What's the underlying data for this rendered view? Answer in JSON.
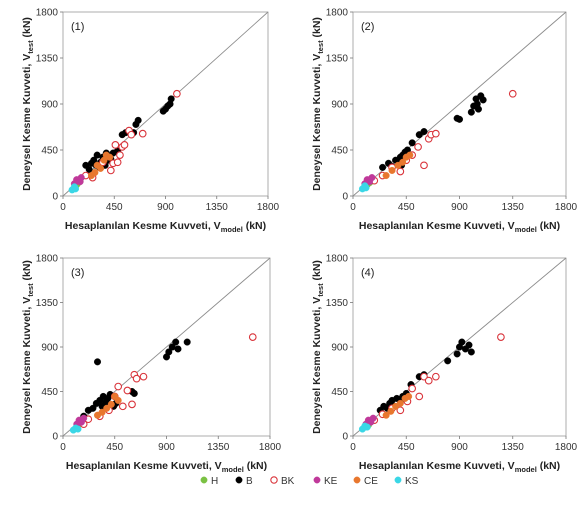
{
  "chart_data": [
    {
      "type": "scatter",
      "panel_label": "(1)",
      "xlabel": "Hesaplanılan Kesme Kuvveti, V",
      "xlabel_sub": "model",
      "xlabel_unit": " (kN)",
      "ylabel": "Deneysel Kesme Kuvveti, V",
      "ylabel_sub": "test",
      "ylabel_unit": " (kN)",
      "xlim": [
        0,
        1800
      ],
      "ylim": [
        0,
        1800
      ],
      "xticks": [
        "0",
        "450",
        "900",
        "1350",
        "1800"
      ],
      "yticks": [
        "0",
        "450",
        "900",
        "1350",
        "1800"
      ],
      "reference_line": "y = x",
      "series": [
        {
          "name": "H",
          "points": [
            [
              120,
              110
            ],
            [
              135,
              130
            ],
            [
              150,
              145
            ]
          ]
        },
        {
          "name": "B",
          "points": [
            [
              200,
              300
            ],
            [
              230,
              260
            ],
            [
              250,
              320
            ],
            [
              270,
              350
            ],
            [
              290,
              300
            ],
            [
              300,
              400
            ],
            [
              320,
              280
            ],
            [
              330,
              330
            ],
            [
              350,
              380
            ],
            [
              370,
              300
            ],
            [
              380,
              420
            ],
            [
              400,
              350
            ],
            [
              420,
              360
            ],
            [
              440,
              420
            ],
            [
              480,
              440
            ],
            [
              520,
              600
            ],
            [
              550,
              620
            ],
            [
              620,
              620
            ],
            [
              640,
              700
            ],
            [
              660,
              740
            ],
            [
              880,
              830
            ],
            [
              900,
              850
            ],
            [
              920,
              880
            ],
            [
              940,
              900
            ],
            [
              950,
              950
            ]
          ]
        },
        {
          "name": "BK",
          "points": [
            [
              200,
              200
            ],
            [
              260,
              180
            ],
            [
              350,
              330
            ],
            [
              420,
              250
            ],
            [
              440,
              320
            ],
            [
              460,
              500
            ],
            [
              480,
              330
            ],
            [
              500,
              400
            ],
            [
              520,
              480
            ],
            [
              540,
              500
            ],
            [
              580,
              640
            ],
            [
              600,
              600
            ],
            [
              700,
              610
            ],
            [
              1000,
              1000
            ]
          ]
        },
        {
          "name": "KE",
          "points": [
            [
              100,
              120
            ],
            [
              120,
              160
            ],
            [
              150,
              140
            ],
            [
              160,
              180
            ]
          ]
        },
        {
          "name": "CE",
          "points": [
            [
              250,
              200
            ],
            [
              280,
              230
            ],
            [
              300,
              300
            ],
            [
              330,
              270
            ],
            [
              360,
              350
            ],
            [
              380,
              400
            ],
            [
              410,
              380
            ]
          ]
        },
        {
          "name": "KS",
          "points": [
            [
              80,
              60
            ],
            [
              100,
              90
            ],
            [
              110,
              70
            ]
          ]
        }
      ]
    },
    {
      "type": "scatter",
      "panel_label": "(2)",
      "xlabel": "Hesaplanılan Kesme Kuvveti, V",
      "xlabel_sub": "model",
      "xlabel_unit": " (kN)",
      "ylabel": "Deneysel Kesme Kuvveti, V",
      "ylabel_sub": "test",
      "ylabel_unit": " (kN)",
      "xlim": [
        0,
        1800
      ],
      "ylim": [
        0,
        1800
      ],
      "xticks": [
        "0",
        "450",
        "900",
        "1350",
        "1800"
      ],
      "yticks": [
        "0",
        "450",
        "900",
        "1350",
        "1800"
      ],
      "reference_line": "y = x",
      "series": [
        {
          "name": "H",
          "points": [
            [
              120,
              110
            ],
            [
              140,
              130
            ],
            [
              150,
              150
            ]
          ]
        },
        {
          "name": "B",
          "points": [
            [
              250,
              280
            ],
            [
              300,
              320
            ],
            [
              330,
              290
            ],
            [
              360,
              350
            ],
            [
              390,
              330
            ],
            [
              400,
              380
            ],
            [
              410,
              300
            ],
            [
              420,
              400
            ],
            [
              440,
              430
            ],
            [
              460,
              450
            ],
            [
              500,
              520
            ],
            [
              560,
              600
            ],
            [
              600,
              630
            ],
            [
              880,
              760
            ],
            [
              900,
              750
            ],
            [
              1000,
              820
            ],
            [
              1020,
              880
            ],
            [
              1040,
              950
            ],
            [
              1050,
              900
            ],
            [
              1060,
              850
            ],
            [
              1080,
              980
            ],
            [
              1100,
              940
            ]
          ]
        },
        {
          "name": "BK",
          "points": [
            [
              180,
              150
            ],
            [
              250,
              200
            ],
            [
              330,
              280
            ],
            [
              400,
              240
            ],
            [
              450,
              350
            ],
            [
              500,
              400
            ],
            [
              550,
              480
            ],
            [
              600,
              300
            ],
            [
              640,
              560
            ],
            [
              660,
              600
            ],
            [
              700,
              610
            ],
            [
              1350,
              1000
            ]
          ]
        },
        {
          "name": "KE",
          "points": [
            [
              100,
              120
            ],
            [
              120,
              160
            ],
            [
              140,
              140
            ],
            [
              160,
              180
            ]
          ]
        },
        {
          "name": "CE",
          "points": [
            [
              280,
              200
            ],
            [
              330,
              250
            ],
            [
              380,
              300
            ],
            [
              420,
              330
            ],
            [
              450,
              380
            ],
            [
              480,
              400
            ]
          ]
        },
        {
          "name": "KS",
          "points": [
            [
              80,
              70
            ],
            [
              100,
              100
            ],
            [
              110,
              80
            ]
          ]
        }
      ]
    },
    {
      "type": "scatter",
      "panel_label": "(3)",
      "xlabel": "Hesaplanılan Kesme Kuvveti, V",
      "xlabel_sub": "model",
      "xlabel_unit": " (kN)",
      "ylabel": "Deneysel Kesme Kuvveti, V",
      "ylabel_sub": "test",
      "ylabel_unit": " (kN)",
      "xlim": [
        0,
        1800
      ],
      "ylim": [
        0,
        1800
      ],
      "xticks": [
        "0",
        "450",
        "900",
        "1350",
        "1800"
      ],
      "yticks": [
        "0",
        "450",
        "900",
        "1350",
        "1800"
      ],
      "reference_line": "y = x",
      "series": [
        {
          "name": "H",
          "points": [
            [
              130,
              110
            ],
            [
              150,
              130
            ],
            [
              160,
              150
            ]
          ]
        },
        {
          "name": "B",
          "points": [
            [
              180,
              200
            ],
            [
              220,
              260
            ],
            [
              260,
              280
            ],
            [
              290,
              330
            ],
            [
              300,
              750
            ],
            [
              320,
              360
            ],
            [
              340,
              300
            ],
            [
              350,
              400
            ],
            [
              370,
              340
            ],
            [
              390,
              380
            ],
            [
              410,
              420
            ],
            [
              440,
              300
            ],
            [
              460,
              330
            ],
            [
              600,
              450
            ],
            [
              620,
              430
            ],
            [
              900,
              800
            ],
            [
              920,
              850
            ],
            [
              950,
              900
            ],
            [
              980,
              950
            ],
            [
              1000,
              880
            ],
            [
              1080,
              950
            ]
          ]
        },
        {
          "name": "BK",
          "points": [
            [
              180,
              120
            ],
            [
              220,
              170
            ],
            [
              320,
              200
            ],
            [
              400,
              260
            ],
            [
              450,
              400
            ],
            [
              480,
              500
            ],
            [
              520,
              300
            ],
            [
              560,
              460
            ],
            [
              600,
              320
            ],
            [
              620,
              620
            ],
            [
              640,
              580
            ],
            [
              700,
              600
            ],
            [
              1650,
              1000
            ]
          ]
        },
        {
          "name": "KE",
          "points": [
            [
              120,
              120
            ],
            [
              140,
              160
            ],
            [
              160,
              140
            ],
            [
              180,
              180
            ]
          ]
        },
        {
          "name": "CE",
          "points": [
            [
              300,
              210
            ],
            [
              340,
              240
            ],
            [
              380,
              280
            ],
            [
              420,
              320
            ],
            [
              450,
              400
            ],
            [
              480,
              360
            ]
          ]
        },
        {
          "name": "KS",
          "points": [
            [
              90,
              60
            ],
            [
              110,
              80
            ],
            [
              130,
              70
            ]
          ]
        }
      ]
    },
    {
      "type": "scatter",
      "panel_label": "(4)",
      "xlabel": "Hesaplanılan Kesme Kuvveti, V",
      "xlabel_sub": "model",
      "xlabel_unit": " (kN)",
      "ylabel": "Deneysel Kesme Kuvveti, V",
      "ylabel_sub": "test",
      "ylabel_unit": " (kN)",
      "xlim": [
        0,
        1800
      ],
      "ylim": [
        0,
        1800
      ],
      "xticks": [
        "0",
        "450",
        "900",
        "1350",
        "1800"
      ],
      "yticks": [
        "0",
        "450",
        "900",
        "1350",
        "1800"
      ],
      "reference_line": "y = x",
      "series": [
        {
          "name": "H",
          "points": [
            [
              130,
              110
            ],
            [
              140,
              140
            ],
            [
              160,
              150
            ]
          ]
        },
        {
          "name": "B",
          "points": [
            [
              230,
              260
            ],
            [
              260,
              300
            ],
            [
              290,
              280
            ],
            [
              310,
              330
            ],
            [
              330,
              360
            ],
            [
              350,
              300
            ],
            [
              370,
              380
            ],
            [
              400,
              350
            ],
            [
              420,
              400
            ],
            [
              450,
              430
            ],
            [
              490,
              520
            ],
            [
              560,
              600
            ],
            [
              600,
              620
            ],
            [
              800,
              760
            ],
            [
              880,
              830
            ],
            [
              900,
              900
            ],
            [
              920,
              950
            ],
            [
              950,
              880
            ],
            [
              980,
              920
            ],
            [
              1000,
              850
            ]
          ]
        },
        {
          "name": "BK",
          "points": [
            [
              180,
              160
            ],
            [
              250,
              220
            ],
            [
              330,
              280
            ],
            [
              400,
              260
            ],
            [
              460,
              350
            ],
            [
              500,
              480
            ],
            [
              560,
              400
            ],
            [
              600,
              600
            ],
            [
              640,
              560
            ],
            [
              700,
              600
            ],
            [
              1250,
              1000
            ]
          ]
        },
        {
          "name": "KE",
          "points": [
            [
              110,
              120
            ],
            [
              130,
              160
            ],
            [
              150,
              140
            ],
            [
              170,
              180
            ]
          ]
        },
        {
          "name": "CE",
          "points": [
            [
              280,
              210
            ],
            [
              320,
              250
            ],
            [
              360,
              300
            ],
            [
              400,
              330
            ],
            [
              440,
              380
            ],
            [
              470,
              400
            ]
          ]
        },
        {
          "name": "KS",
          "points": [
            [
              80,
              70
            ],
            [
              100,
              100
            ],
            [
              120,
              90
            ]
          ]
        }
      ]
    }
  ],
  "legend": {
    "placement": "bottom",
    "items": [
      {
        "name": "H",
        "color": "#7ac143",
        "style": "filled"
      },
      {
        "name": "B",
        "color": "#000000",
        "style": "filled"
      },
      {
        "name": "BK",
        "color": "#d9343b",
        "style": "hollow"
      },
      {
        "name": "KE",
        "color": "#c0399a",
        "style": "filled"
      },
      {
        "name": "CE",
        "color": "#e8772e",
        "style": "filled"
      },
      {
        "name": "KS",
        "color": "#3ad7e6",
        "style": "filled"
      }
    ]
  }
}
